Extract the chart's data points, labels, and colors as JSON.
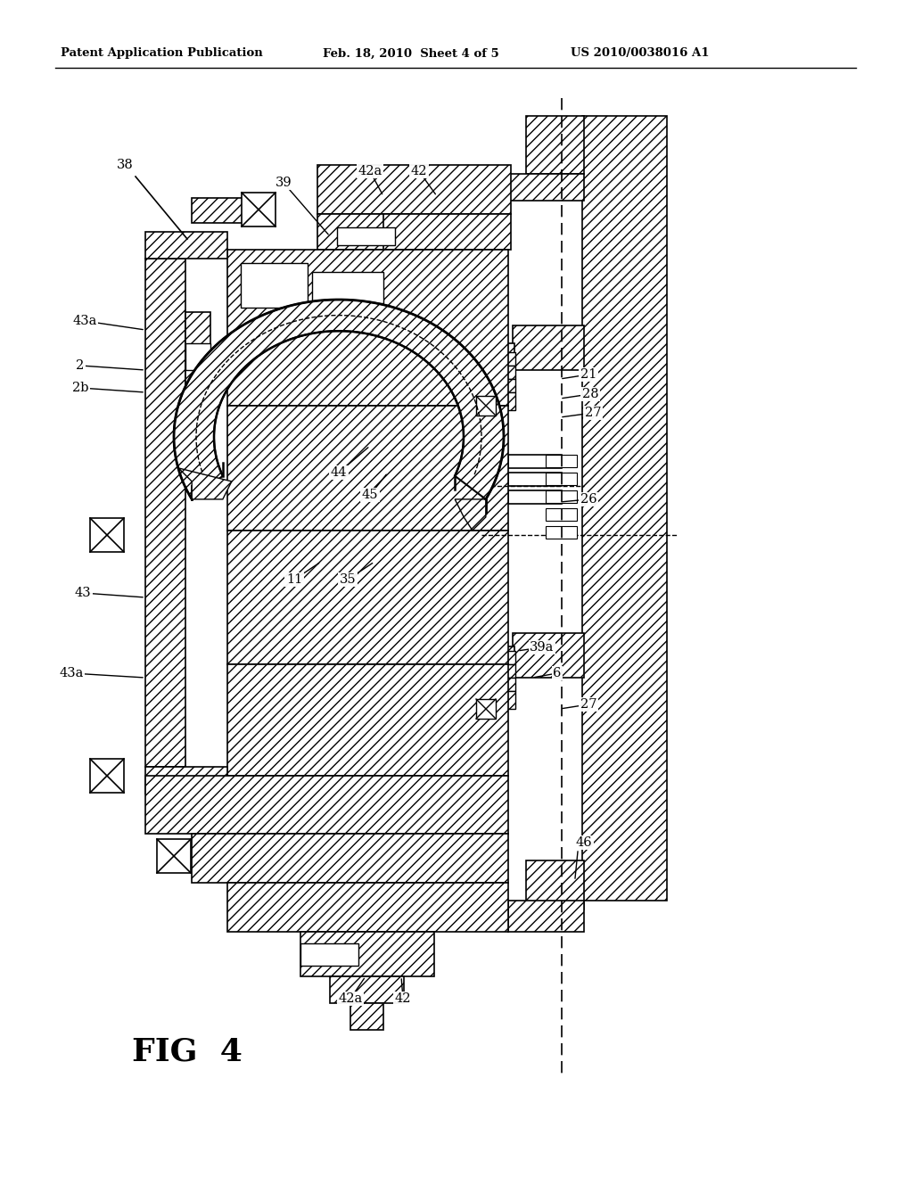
{
  "title_left": "Patent Application Publication",
  "title_mid": "Feb. 18, 2010  Sheet 4 of 5",
  "title_right": "US 2010/0038016 A1",
  "fig_label": "FIG  4",
  "bg": "#ffffff",
  "lc": "#000000"
}
